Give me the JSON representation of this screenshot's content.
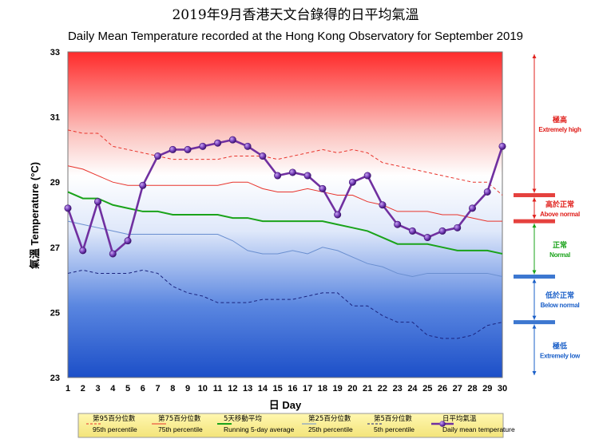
{
  "title_zh": "2019年9月香港天文台錄得的日平均氣溫",
  "title_en": "Daily Mean Temperature recorded at the Hong Kong Observatory for September 2019",
  "chart_data": {
    "type": "line",
    "title": "Daily Mean Temperature recorded at the Hong Kong Observatory for September 2019",
    "xlabel": "日 Day",
    "ylabel": "氣溫 Temperature (°C)",
    "xlim": [
      1,
      30
    ],
    "ylim": [
      23,
      33
    ],
    "x_ticks": [
      "1",
      "2",
      "3",
      "4",
      "5",
      "6",
      "7",
      "8",
      "9",
      "10",
      "11",
      "12",
      "13",
      "14",
      "15",
      "16",
      "17",
      "18",
      "19",
      "20",
      "21",
      "22",
      "23",
      "24",
      "25",
      "26",
      "27",
      "28",
      "29",
      "30"
    ],
    "y_ticks": [
      "23",
      "25",
      "27",
      "29",
      "31",
      "33"
    ],
    "x": [
      1,
      2,
      3,
      4,
      5,
      6,
      7,
      8,
      9,
      10,
      11,
      12,
      13,
      14,
      15,
      16,
      17,
      18,
      19,
      20,
      21,
      22,
      23,
      24,
      25,
      26,
      27,
      28,
      29,
      30
    ],
    "series": [
      {
        "name_zh": "第95百分位數",
        "name": "95th percentile",
        "color": "#e8332b",
        "style": "dashed",
        "values": [
          30.6,
          30.5,
          30.5,
          30.1,
          30.0,
          29.9,
          29.8,
          29.7,
          29.7,
          29.7,
          29.7,
          29.8,
          29.8,
          29.8,
          29.7,
          29.8,
          29.9,
          30.0,
          29.9,
          30.0,
          29.9,
          29.6,
          29.5,
          29.4,
          29.3,
          29.2,
          29.1,
          29.0,
          29.0,
          28.6
        ]
      },
      {
        "name_zh": "第75百分位數",
        "name": "75th percentile",
        "color": "#e8332b",
        "style": "solid",
        "values": [
          29.5,
          29.4,
          29.2,
          29.0,
          28.9,
          28.9,
          28.9,
          28.9,
          28.9,
          28.9,
          28.9,
          29.0,
          29.0,
          28.8,
          28.7,
          28.7,
          28.8,
          28.7,
          28.6,
          28.6,
          28.4,
          28.3,
          28.1,
          28.1,
          28.1,
          28.0,
          28.0,
          27.9,
          27.8,
          27.8
        ]
      },
      {
        "name_zh": "5天移動平均",
        "name": "Running 5-day average",
        "color": "#1aa31a",
        "style": "solid",
        "values": [
          28.7,
          28.5,
          28.5,
          28.3,
          28.2,
          28.1,
          28.1,
          28.0,
          28.0,
          28.0,
          28.0,
          27.9,
          27.9,
          27.8,
          27.8,
          27.8,
          27.8,
          27.8,
          27.7,
          27.6,
          27.5,
          27.3,
          27.1,
          27.1,
          27.1,
          27.0,
          26.9,
          26.9,
          26.9,
          26.8
        ]
      },
      {
        "name_zh": "第25百分位數",
        "name": "25th percentile",
        "color": "#6a8fd0",
        "style": "solid",
        "values": [
          27.8,
          27.7,
          27.6,
          27.5,
          27.4,
          27.4,
          27.4,
          27.4,
          27.4,
          27.4,
          27.4,
          27.2,
          26.9,
          26.8,
          26.8,
          26.9,
          26.8,
          27.0,
          26.9,
          26.7,
          26.5,
          26.4,
          26.2,
          26.1,
          26.2,
          26.2,
          26.2,
          26.2,
          26.2,
          26.1
        ]
      },
      {
        "name_zh": "第5百分位數",
        "name": "5th percentile",
        "color": "#1a237e",
        "style": "dashed",
        "values": [
          26.2,
          26.3,
          26.2,
          26.2,
          26.2,
          26.3,
          26.2,
          25.8,
          25.6,
          25.5,
          25.3,
          25.3,
          25.3,
          25.4,
          25.4,
          25.4,
          25.5,
          25.6,
          25.6,
          25.2,
          25.2,
          24.9,
          24.7,
          24.7,
          24.3,
          24.2,
          24.2,
          24.3,
          24.6,
          24.7
        ]
      },
      {
        "name_zh": "日平均氣溫",
        "name": "Daily mean temperature",
        "color": "#7030a0",
        "style": "markers",
        "values": [
          28.2,
          26.9,
          28.4,
          26.8,
          27.2,
          28.9,
          29.8,
          30.0,
          30.0,
          30.1,
          30.2,
          30.3,
          30.1,
          29.8,
          29.2,
          29.3,
          29.2,
          28.8,
          28.0,
          29.0,
          29.2,
          28.3,
          27.7,
          27.5,
          27.3,
          27.5,
          27.6,
          28.2,
          28.7,
          30.1
        ]
      }
    ],
    "zones": [
      {
        "name_zh": "極高",
        "name": "Extremely high",
        "color": "#e0201c",
        "from": 28.6,
        "to": 33
      },
      {
        "name_zh": "高於正常",
        "name": "Above normal",
        "color": "#e0201c",
        "from": 27.8,
        "to": 28.6
      },
      {
        "name_zh": "正常",
        "name": "Normal",
        "color": "#1aa31a",
        "from": 26.1,
        "to": 27.8
      },
      {
        "name_zh": "低於正常",
        "name": "Below normal",
        "color": "#1a5fc8",
        "from": 24.7,
        "to": 26.1
      },
      {
        "name_zh": "極低",
        "name": "Extremely low",
        "color": "#1a5fc8",
        "from": 23,
        "to": 24.7
      }
    ],
    "legend_position": "bottom",
    "grid": false
  }
}
